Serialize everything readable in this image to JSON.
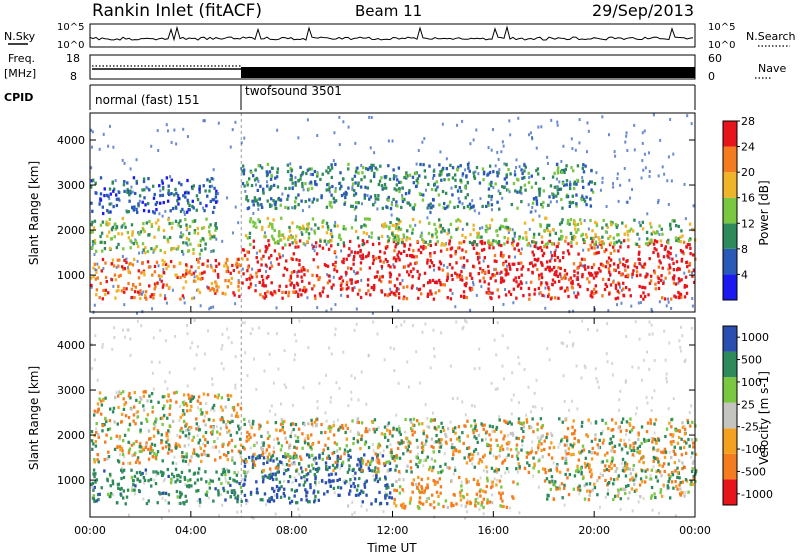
{
  "header": {
    "station": "Rankin Inlet (fitACF)",
    "beam": "Beam 11",
    "date": "29/Sep/2013"
  },
  "labels": {
    "nsky": "N.Sky",
    "nsearch": "N.Search",
    "freq": "Freq.",
    "freq_unit": "[MHz]",
    "nave": "Nave",
    "cpid": "CPID",
    "tick_1e5": "10^5",
    "tick_1e0": "10^0",
    "freq_18": "18",
    "freq_8": "8",
    "nave_60": "60",
    "nave_0": "0"
  },
  "cpid_modes": [
    {
      "name": "normal (fast) 151",
      "start": "00:00",
      "end": "06:00"
    },
    {
      "name": "twofsound 3501",
      "start": "06:00",
      "end": "24:00"
    }
  ],
  "chart_data": [
    {
      "type": "heatmap",
      "title": "",
      "xlabel": "Time UT",
      "ylabel": "Slant Range [km]",
      "xlim": [
        "00:00",
        "24:00"
      ],
      "ylim": [
        180,
        4600
      ],
      "x_ticks": [
        "00:00",
        "04:00",
        "08:00",
        "12:00",
        "16:00",
        "20:00",
        "00:00"
      ],
      "y_ticks": [
        1000,
        2000,
        3000,
        4000
      ],
      "colorbar": {
        "label": "Power [dB]",
        "ticks": [
          4,
          8,
          12,
          16,
          20,
          24,
          28
        ],
        "colors": [
          "#1a1af0",
          "#2a5ab8",
          "#2e8a5a",
          "#7ac742",
          "#f0b429",
          "#f57b1f",
          "#e8141b"
        ]
      },
      "regions": [
        {
          "t_start": 0.0,
          "t_end": 6.0,
          "r_min": 500,
          "r_max": 1400,
          "power_db": 22
        },
        {
          "t_start": 0.0,
          "t_end": 5.0,
          "r_min": 1500,
          "r_max": 2300,
          "power_db": 14
        },
        {
          "t_start": 0.0,
          "t_end": 5.0,
          "r_min": 2400,
          "r_max": 3200,
          "power_db": 6
        },
        {
          "t_start": 6.0,
          "t_end": 24.0,
          "r_min": 500,
          "r_max": 1800,
          "power_db": 27
        },
        {
          "t_start": 6.0,
          "t_end": 24.0,
          "r_min": 1700,
          "r_max": 2300,
          "power_db": 14
        },
        {
          "t_start": 6.0,
          "t_end": 20.0,
          "r_min": 2500,
          "r_max": 3500,
          "power_db": 9
        }
      ]
    },
    {
      "type": "heatmap",
      "title": "",
      "xlabel": "Time UT",
      "ylabel": "Slant Range [km]",
      "xlim": [
        "00:00",
        "24:00"
      ],
      "ylim": [
        180,
        4600
      ],
      "x_ticks": [
        "00:00",
        "04:00",
        "08:00",
        "12:00",
        "16:00",
        "20:00",
        "00:00"
      ],
      "y_ticks": [
        1000,
        2000,
        3000,
        4000
      ],
      "colorbar": {
        "label": "Velocity [m s-1]",
        "ticks": [
          1000,
          500,
          100,
          25,
          -25,
          -100,
          -500,
          -1000
        ],
        "colors": [
          "#2a4fb0",
          "#2e8a5a",
          "#7ac742",
          "#c4c4c0",
          "#f4a020",
          "#f57b1f",
          "#e8141b"
        ]
      },
      "regions": [
        {
          "t_start": 0.0,
          "t_end": 6.0,
          "r_min": 500,
          "r_max": 1300,
          "velocity": 300
        },
        {
          "t_start": 0.0,
          "t_end": 6.0,
          "r_min": 1400,
          "r_max": 3000,
          "velocity": 0
        },
        {
          "t_start": 6.0,
          "t_end": 12.0,
          "r_min": 500,
          "r_max": 1600,
          "velocity": 600
        },
        {
          "t_start": 12.0,
          "t_end": 17.0,
          "r_min": 400,
          "r_max": 1100,
          "velocity": -150
        },
        {
          "t_start": 6.0,
          "t_end": 24.0,
          "r_min": 1200,
          "r_max": 2400,
          "velocity": 0
        },
        {
          "t_start": 18.0,
          "t_end": 24.0,
          "r_min": 600,
          "r_max": 1300,
          "velocity": 60
        }
      ]
    }
  ]
}
